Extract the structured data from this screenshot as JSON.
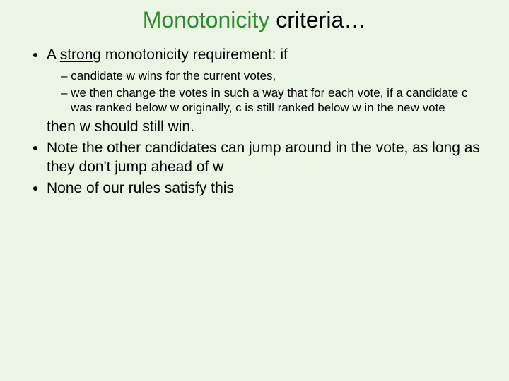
{
  "title": {
    "word1": "Monotonicity",
    "word2": " criteria…"
  },
  "colors": {
    "background": "#eaf5e3",
    "accent": "#2e8b2e",
    "text": "#000000"
  },
  "bullets": {
    "b1_prefix": "A ",
    "b1_underlined": "strong",
    "b1_suffix": " monotonicity requirement: if",
    "sub1": "candidate w wins for the current votes,",
    "sub2": "we then change the votes in such a way that for each vote, if a candidate c was ranked below w originally, c is still ranked below w in the new vote",
    "b1_continue": "then w should still win.",
    "b2": "Note the other candidates can jump around in the vote, as long as they don't jump ahead of w",
    "b3": "None of our rules satisfy this"
  }
}
